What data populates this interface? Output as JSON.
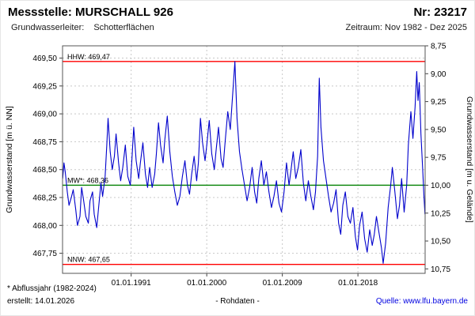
{
  "header": {
    "station_label": "Messstelle: MURSCHALL 926",
    "number_label": "Nr: 23217",
    "aquifer_label": "Grundwasserleiter:",
    "aquifer_value": "Schotterflächen",
    "period_label": "Zeitraum: Nov 1982 - Dez 2025"
  },
  "footer": {
    "footnote": "* Abflussjahr (1982-2024)",
    "created": "erstellt: 14.01.2026",
    "center": "- Rohdaten -",
    "source_label": "Quelle:",
    "source_link": "www.lfu.bayern.de"
  },
  "chart_data": {
    "type": "line",
    "title": "",
    "xlabel": "",
    "ylabel_left": "Grundwasserstand [m ü. NN]",
    "ylabel_right": "Grundwasserstand [m u. Gelände]",
    "grid": true,
    "legend": "none",
    "xlim": [
      1982.83,
      2026.0
    ],
    "ylim_left": [
      467.57,
      469.61
    ],
    "ylim_right": [
      8.75,
      10.79
    ],
    "right_axis_inverted": true,
    "x_ticks": [
      {
        "value": 1991.0,
        "label": "01.01.1991"
      },
      {
        "value": 2000.0,
        "label": "01.01.2000"
      },
      {
        "value": 2009.0,
        "label": "01.01.2009"
      },
      {
        "value": 2018.0,
        "label": "01.01.2018"
      }
    ],
    "y_ticks_left": [
      {
        "value": 467.75,
        "label": "467,75"
      },
      {
        "value": 468.0,
        "label": "468,00"
      },
      {
        "value": 468.25,
        "label": "468,25"
      },
      {
        "value": 468.5,
        "label": "468,50"
      },
      {
        "value": 468.75,
        "label": "468,75"
      },
      {
        "value": 469.0,
        "label": "469,00"
      },
      {
        "value": 469.25,
        "label": "469,25"
      },
      {
        "value": 469.5,
        "label": "469,50"
      }
    ],
    "y_ticks_right": [
      {
        "value": 8.75,
        "label": "8,75"
      },
      {
        "value": 9.0,
        "label": "9,00"
      },
      {
        "value": 9.25,
        "label": "9,25"
      },
      {
        "value": 9.5,
        "label": "9,50"
      },
      {
        "value": 9.75,
        "label": "9,75"
      },
      {
        "value": 10.0,
        "label": "10,00"
      },
      {
        "value": 10.25,
        "label": "10,25"
      },
      {
        "value": 10.5,
        "label": "10,50"
      },
      {
        "value": 10.75,
        "label": "10,75"
      }
    ],
    "markers": [
      {
        "name": "HHW",
        "label": "HHW: 469,47",
        "value": 469.47,
        "color": "#ff0000"
      },
      {
        "name": "MW",
        "label": "MW*: 468,36",
        "value": 468.36,
        "color": "#008000"
      },
      {
        "name": "NNW",
        "label": "NNW: 467,65",
        "value": 467.65,
        "color": "#ff0000"
      }
    ],
    "series": [
      {
        "name": "Grundwasserstand Rohdaten",
        "color": "#0000cc",
        "x": [
          1982.85,
          1983.0,
          1983.15,
          1983.4,
          1983.6,
          1983.9,
          1984.1,
          1984.4,
          1984.6,
          1984.9,
          1985.1,
          1985.35,
          1985.6,
          1985.9,
          1986.1,
          1986.4,
          1986.6,
          1986.9,
          1987.1,
          1987.4,
          1987.6,
          1987.9,
          1988.1,
          1988.25,
          1988.5,
          1988.75,
          1989.0,
          1989.2,
          1989.5,
          1989.75,
          1990.0,
          1990.3,
          1990.6,
          1990.9,
          1991.1,
          1991.3,
          1991.6,
          1991.9,
          1992.1,
          1992.4,
          1992.7,
          1992.95,
          1993.2,
          1993.5,
          1993.8,
          1994.0,
          1994.25,
          1994.5,
          1994.8,
          1995.0,
          1995.3,
          1995.6,
          1995.9,
          1996.2,
          1996.5,
          1996.8,
          1997.1,
          1997.4,
          1997.7,
          1997.95,
          1998.2,
          1998.5,
          1998.8,
          1999.0,
          1999.25,
          1999.5,
          1999.8,
          2000.0,
          2000.3,
          2000.6,
          2000.9,
          2001.1,
          2001.4,
          2001.7,
          2001.95,
          2002.2,
          2002.5,
          2002.8,
          2003.0,
          2003.2,
          2003.35,
          2003.6,
          2003.9,
          2004.2,
          2004.5,
          2004.8,
          2005.1,
          2005.4,
          2005.7,
          2005.95,
          2006.2,
          2006.5,
          2006.8,
          2007.1,
          2007.4,
          2007.7,
          2008.0,
          2008.3,
          2008.6,
          2008.9,
          2009.2,
          2009.5,
          2009.8,
          2010.0,
          2010.3,
          2010.6,
          2010.9,
          2011.2,
          2011.5,
          2011.8,
          2012.1,
          2012.4,
          2012.7,
          2012.95,
          2013.2,
          2013.4,
          2013.6,
          2013.9,
          2014.2,
          2014.5,
          2014.8,
          2015.1,
          2015.4,
          2015.7,
          2015.95,
          2016.2,
          2016.5,
          2016.8,
          2017.1,
          2017.4,
          2017.7,
          2017.95,
          2018.2,
          2018.5,
          2018.8,
          2019.1,
          2019.4,
          2019.7,
          2019.95,
          2020.2,
          2020.5,
          2020.8,
          2021.0,
          2021.3,
          2021.6,
          2021.9,
          2022.1,
          2022.4,
          2022.7,
          2022.95,
          2023.2,
          2023.5,
          2023.8,
          2024.0,
          2024.3,
          2024.55,
          2024.8,
          2025.0,
          2025.15,
          2025.3,
          2025.5,
          2025.7,
          2025.85,
          2025.98
        ],
        "y": [
          468.42,
          468.56,
          468.48,
          468.3,
          468.18,
          468.26,
          468.32,
          468.14,
          468.0,
          468.08,
          468.34,
          468.22,
          468.08,
          468.02,
          468.22,
          468.3,
          468.1,
          467.98,
          468.14,
          468.38,
          468.26,
          468.44,
          468.72,
          468.96,
          468.66,
          468.5,
          468.62,
          468.82,
          468.56,
          468.4,
          468.52,
          468.72,
          468.44,
          468.36,
          468.6,
          468.88,
          468.58,
          468.42,
          468.56,
          468.74,
          468.46,
          468.34,
          468.52,
          468.34,
          468.46,
          468.64,
          468.92,
          468.72,
          468.56,
          468.76,
          468.98,
          468.66,
          468.44,
          468.3,
          468.18,
          468.26,
          468.44,
          468.58,
          468.36,
          468.28,
          468.46,
          468.62,
          468.4,
          468.56,
          468.96,
          468.74,
          468.58,
          468.72,
          468.94,
          468.64,
          468.5,
          468.66,
          468.88,
          468.6,
          468.52,
          468.76,
          469.02,
          468.86,
          469.08,
          469.3,
          469.47,
          468.96,
          468.66,
          468.5,
          468.36,
          468.22,
          468.34,
          468.52,
          468.3,
          468.2,
          468.42,
          468.58,
          468.36,
          468.48,
          468.3,
          468.16,
          468.26,
          468.4,
          468.2,
          468.12,
          468.3,
          468.56,
          468.36,
          468.48,
          468.66,
          468.42,
          468.52,
          468.68,
          468.38,
          468.22,
          468.4,
          468.26,
          468.14,
          468.3,
          468.62,
          469.32,
          468.88,
          468.58,
          468.42,
          468.26,
          468.12,
          468.2,
          468.32,
          468.02,
          467.92,
          468.18,
          468.3,
          468.08,
          468.02,
          468.16,
          467.9,
          467.78,
          468.0,
          468.12,
          467.88,
          467.76,
          467.96,
          467.82,
          467.92,
          468.08,
          467.94,
          467.8,
          467.66,
          467.84,
          468.16,
          468.36,
          468.52,
          468.3,
          468.06,
          468.18,
          468.42,
          468.12,
          468.36,
          468.72,
          469.02,
          468.78,
          469.06,
          469.38,
          469.12,
          469.28,
          468.82,
          468.52,
          468.28,
          468.1
        ]
      }
    ]
  }
}
